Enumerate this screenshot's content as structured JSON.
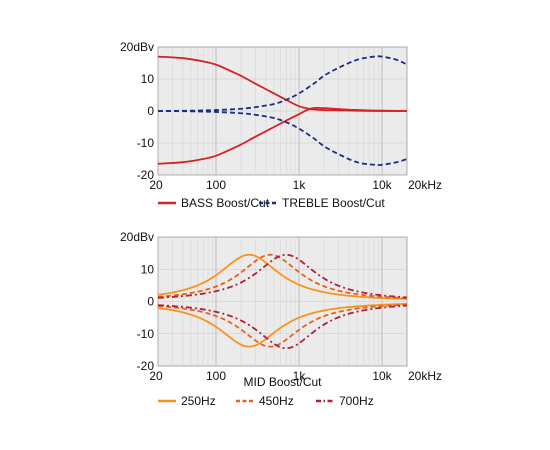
{
  "chart_data": [
    {
      "type": "line",
      "x_scale": "log",
      "xlim": [
        20,
        20000
      ],
      "ylim": [
        -20,
        20
      ],
      "x_ticks": [
        20,
        100,
        1000,
        10000,
        20000
      ],
      "x_tick_labels": [
        "20",
        "100",
        "1k",
        "10k",
        "20kHz"
      ],
      "y_ticks": [
        20,
        10,
        0,
        -10,
        -20
      ],
      "y_tick_labels": [
        "20dBv",
        "10",
        "0",
        "-10",
        "-20"
      ],
      "xlabel": "",
      "ylabel": "",
      "grid": true,
      "legend_position": "bottom",
      "legend": [
        {
          "label": "BASS Boost/Cut",
          "color": "#d42027",
          "style": "solid"
        },
        {
          "label": "TREBLE Boost/Cut",
          "color": "#1c2f7d",
          "style": "dashed"
        }
      ],
      "series": [
        {
          "name": "BASS Boost/Cut",
          "color": "#d42027",
          "style": "solid",
          "x": [
            20,
            40,
            70,
            100,
            150,
            200,
            300,
            500,
            700,
            1000,
            1400,
            2000,
            3000,
            5000,
            10000,
            20000
          ],
          "y": [
            17,
            16.5,
            15.5,
            14.5,
            12.5,
            11,
            8.5,
            5.5,
            3.5,
            1.5,
            0.6,
            0.3,
            0.2,
            0.1,
            0,
            0
          ]
        },
        {
          "name": "BASS Boost/Cut",
          "color": "#d42027",
          "style": "solid",
          "x": [
            20,
            40,
            70,
            100,
            150,
            200,
            300,
            500,
            700,
            1000,
            1400,
            2000,
            3000,
            5000,
            10000,
            20000
          ],
          "y": [
            -16.5,
            -16,
            -15,
            -14,
            -12,
            -10.5,
            -8,
            -5,
            -3,
            -1,
            0.8,
            0.9,
            0.6,
            0.3,
            0.1,
            0
          ]
        },
        {
          "name": "TREBLE Boost/Cut",
          "color": "#1c2f7d",
          "style": "dashed",
          "x": [
            20,
            50,
            100,
            200,
            300,
            500,
            700,
            1000,
            1500,
            2000,
            3000,
            5000,
            8000,
            10000,
            15000,
            20000
          ],
          "y": [
            0,
            0.1,
            0.3,
            0.7,
            1.2,
            2.2,
            3.5,
            5.5,
            8.5,
            11,
            13.5,
            16,
            17,
            17,
            16,
            14.5
          ]
        },
        {
          "name": "TREBLE Boost/Cut",
          "color": "#1c2f7d",
          "style": "dashed",
          "x": [
            20,
            50,
            100,
            200,
            300,
            500,
            700,
            1000,
            1500,
            2000,
            3000,
            5000,
            8000,
            10000,
            15000,
            20000
          ],
          "y": [
            0,
            -0.1,
            -0.3,
            -0.7,
            -1.2,
            -2.2,
            -3.5,
            -5.5,
            -8.5,
            -11,
            -13.5,
            -16,
            -16.8,
            -16.8,
            -16,
            -15
          ]
        }
      ]
    },
    {
      "type": "line",
      "x_scale": "log",
      "xlim": [
        20,
        20000
      ],
      "ylim": [
        -20,
        20
      ],
      "x_ticks": [
        20,
        100,
        1000,
        10000,
        20000
      ],
      "x_tick_labels": [
        "20",
        "100",
        "1k",
        "10k",
        "20kHz"
      ],
      "y_ticks": [
        20,
        10,
        0,
        -10,
        -20
      ],
      "y_tick_labels": [
        "20dBv",
        "10",
        "0",
        "-10",
        "-20"
      ],
      "xlabel": "MID Boost/Cut",
      "ylabel": "",
      "grid": true,
      "legend_position": "bottom",
      "legend": [
        {
          "label": "250Hz",
          "color": "#f7941d",
          "style": "solid"
        },
        {
          "label": "450Hz",
          "color": "#e8601c",
          "style": "dashed"
        },
        {
          "label": "700Hz",
          "color": "#b0203a",
          "style": "dashdot"
        }
      ],
      "series": [
        {
          "name": "250Hz",
          "color": "#f7941d",
          "style": "solid",
          "center": 250,
          "peak": 14.5,
          "width": 0.45
        },
        {
          "name": "250Hz",
          "color": "#f7941d",
          "style": "solid",
          "center": 250,
          "peak": -14,
          "width": 0.45
        },
        {
          "name": "450Hz",
          "color": "#e8601c",
          "style": "dashed",
          "center": 450,
          "peak": 14.5,
          "width": 0.45
        },
        {
          "name": "450Hz",
          "color": "#e8601c",
          "style": "dashed",
          "center": 450,
          "peak": -14,
          "width": 0.45
        },
        {
          "name": "700Hz",
          "color": "#b0203a",
          "style": "dashdot",
          "center": 700,
          "peak": 14.5,
          "width": 0.45
        },
        {
          "name": "700Hz",
          "color": "#b0203a",
          "style": "dashdot",
          "center": 700,
          "peak": -14.5,
          "width": 0.45
        }
      ]
    }
  ]
}
